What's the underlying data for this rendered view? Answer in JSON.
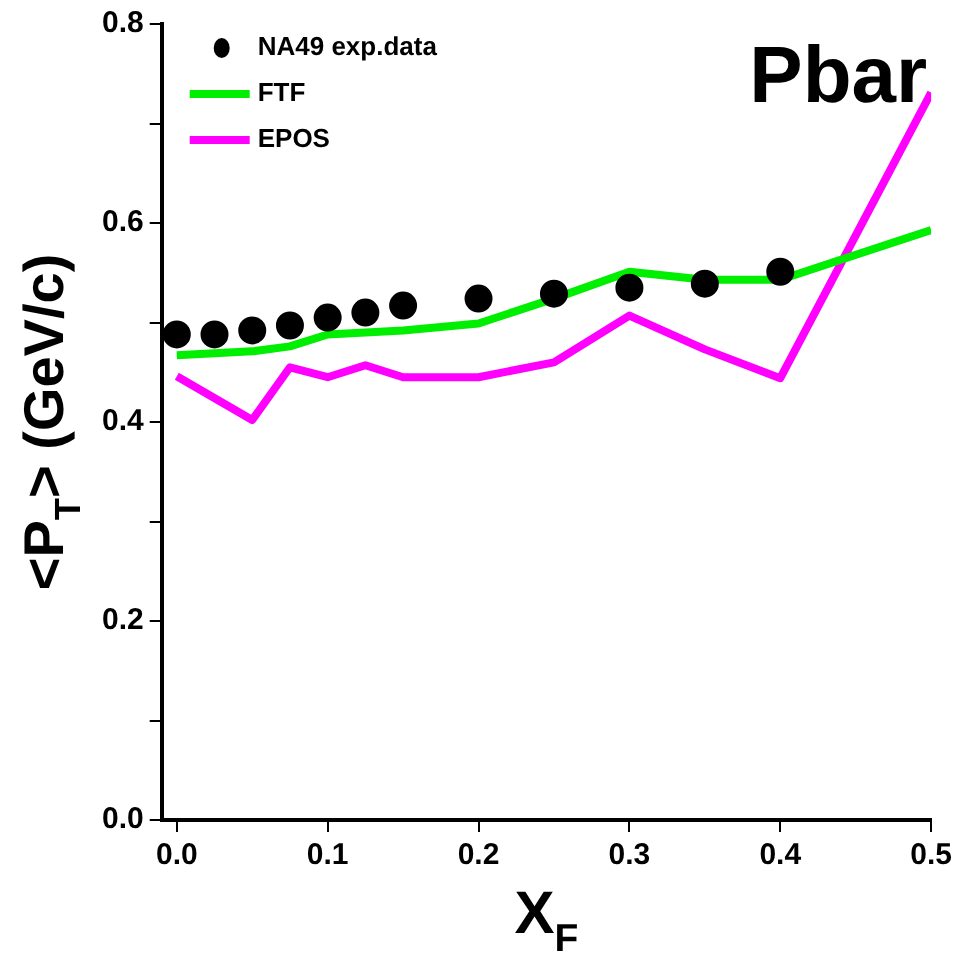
{
  "chart_data": {
    "type": "line",
    "title": "Pbar",
    "xlabel": "X$_{F}$",
    "ylabel": "<P$_{T}$> (GeV/c)",
    "xlim": [
      -0.01,
      0.5
    ],
    "xticks": [
      {
        "value": 0,
        "label": "0.0"
      },
      0.1,
      0.2,
      0.3,
      0.4,
      0.5
    ],
    "ylim": [
      0,
      0.8
    ],
    "yticks": [
      {
        "value": 0,
        "label": "0.0"
      },
      {
        "value": 0.1,
        "label": null
      },
      0.2,
      {
        "value": 0.3,
        "label": null
      },
      0.4,
      {
        "value": 0.5,
        "label": null
      },
      0.6,
      {
        "value": 0.7,
        "label": null
      },
      0.8
    ],
    "grid": false,
    "legend": "top left",
    "series": [
      {
        "name": "NA49 exp.data",
        "type": "scatter",
        "marker": "circle",
        "color": "#000000",
        "x": [
          0,
          0.025,
          0.05,
          0.075,
          0.1,
          0.125,
          0.15,
          0.2,
          0.25,
          0.3,
          0.35,
          0.4
        ],
        "values": [
          0.488,
          0.488,
          0.492,
          0.497,
          0.505,
          0.51,
          0.517,
          0.524,
          0.529,
          0.535,
          0.539,
          0.551
        ]
      },
      {
        "name": "FTF",
        "type": "line",
        "color": "#00ee00",
        "x": [
          0,
          0.05,
          0.075,
          0.1,
          0.15,
          0.2,
          0.25,
          0.3,
          0.35,
          0.4,
          0.5
        ],
        "values": [
          0.467,
          0.471,
          0.476,
          0.488,
          0.492,
          0.499,
          0.524,
          0.551,
          0.543,
          0.543,
          0.593
        ]
      },
      {
        "name": "EPOS",
        "type": "line",
        "color": "#ff00ff",
        "x": [
          0,
          0.05,
          0.075,
          0.1,
          0.125,
          0.15,
          0.2,
          0.25,
          0.3,
          0.35,
          0.4,
          0.5
        ],
        "values": [
          0.446,
          0.402,
          0.455,
          0.445,
          0.457,
          0.445,
          0.445,
          0.46,
          0.507,
          0.473,
          0.444,
          0.731
        ]
      }
    ]
  }
}
